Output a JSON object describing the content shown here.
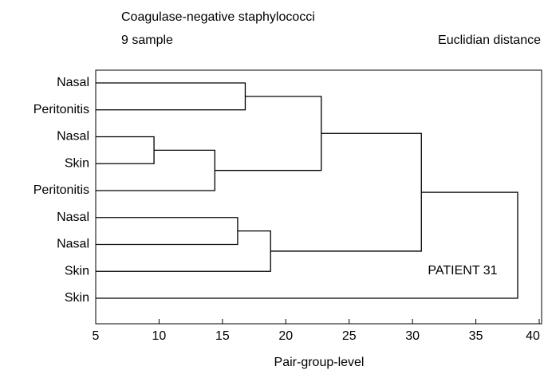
{
  "chart_data": {
    "type": "dendrogram",
    "title": "Coagulase-negative staphylococci",
    "subtitle": "9 sample",
    "metric": "Euclidian distance",
    "xlabel": "Pair-group-level",
    "annotation": "PATIENT 31",
    "leaves": [
      "Nasal",
      "Peritonitis",
      "Nasal",
      "Skin",
      "Peritonitis",
      "Nasal",
      "Nasal",
      "Skin",
      "Skin"
    ],
    "merges": [
      {
        "children": [
          0,
          1
        ],
        "height": 16.8
      },
      {
        "children": [
          2,
          3
        ],
        "height": 9.6
      },
      {
        "children": [
          10,
          4
        ],
        "height": 14.4
      },
      {
        "children": [
          9,
          11
        ],
        "height": 22.8
      },
      {
        "children": [
          5,
          6
        ],
        "height": 16.2
      },
      {
        "children": [
          13,
          7
        ],
        "height": 18.8
      },
      {
        "children": [
          12,
          14
        ],
        "height": 30.7
      },
      {
        "children": [
          15,
          8
        ],
        "height": 38.3
      }
    ],
    "xlim": [
      5,
      40
    ],
    "xticks": [
      5,
      10,
      15,
      20,
      25,
      30,
      35,
      40
    ],
    "color": "#000000"
  }
}
